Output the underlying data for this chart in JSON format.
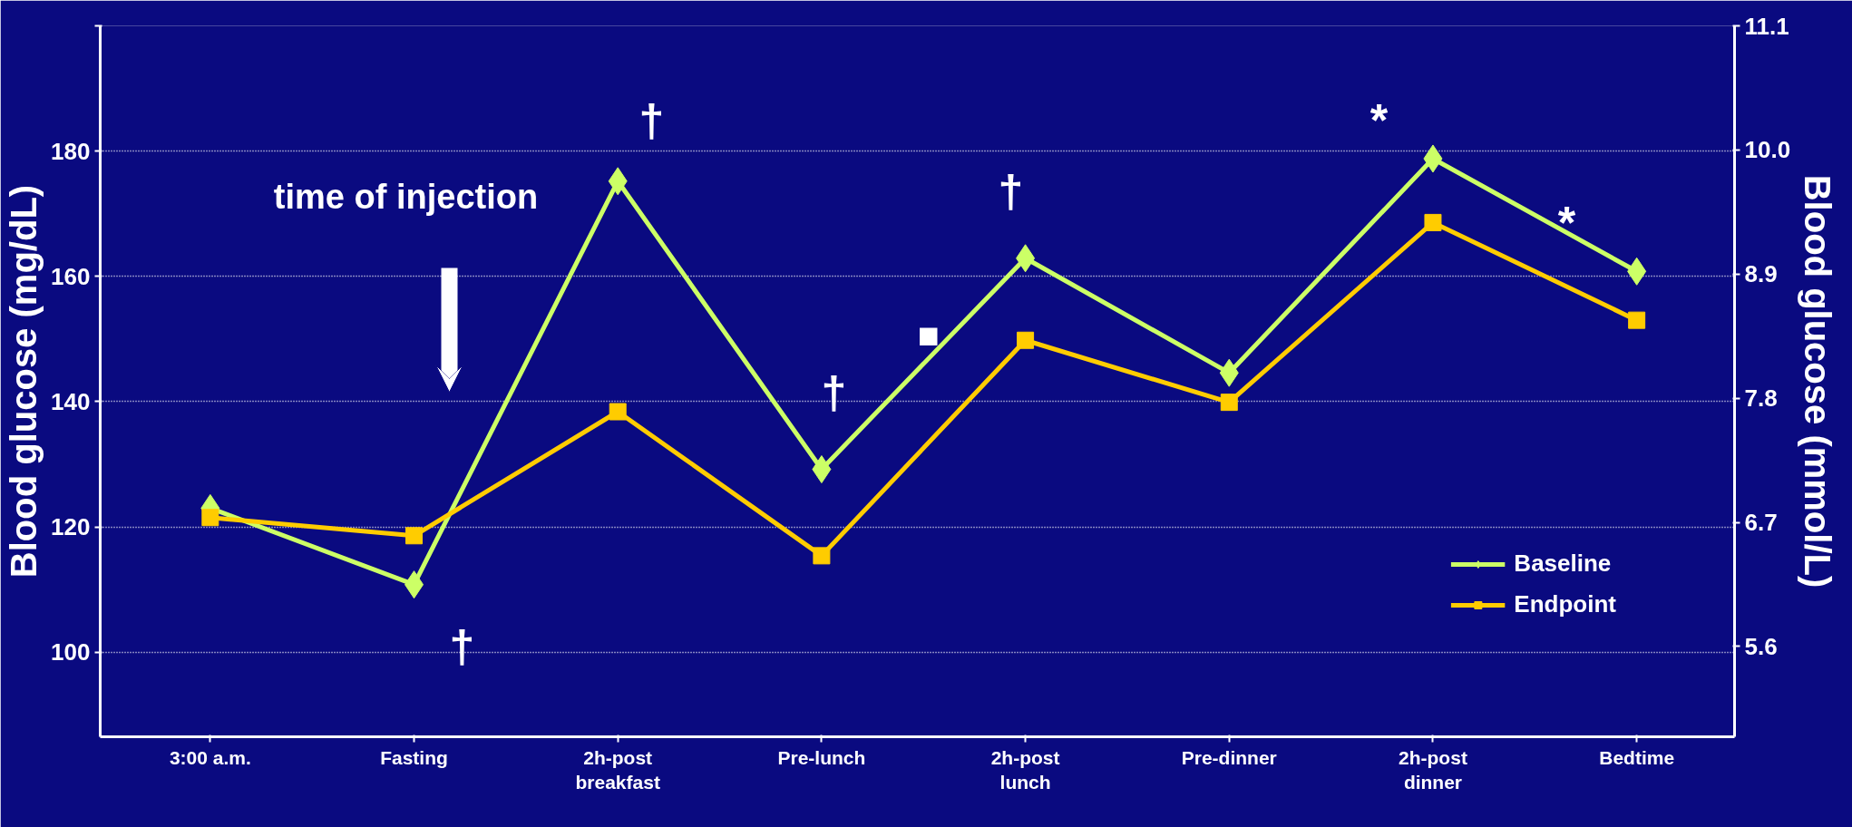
{
  "chart_data": {
    "type": "line",
    "categories": [
      "3:00 a.m.",
      "Fasting",
      "2h-post\nbreakfast",
      "Pre-lunch",
      "2h-post\nlunch",
      "Pre-dinner",
      "2h-post\ndinner",
      "Bedtime"
    ],
    "series": [
      {
        "name": "Baseline",
        "color": "#ccff66",
        "marker": "diamond",
        "values": [
          123,
          110.8,
          175.2,
          129.2,
          162.9,
          144.6,
          178.8,
          160.8
        ]
      },
      {
        "name": "Endpoint",
        "color": "#ffcc00",
        "marker": "square",
        "values": [
          121.5,
          118.6,
          138.4,
          115.4,
          149.8,
          139.9,
          168.6,
          153
        ]
      }
    ],
    "ylabel": "Blood glucose (mg/dL)",
    "y2label": "Blood glucose (mmol/L)",
    "ylim": [
      86.5,
      200
    ],
    "yticks": [
      100,
      120,
      140,
      160,
      180,
      {
        "value": 200,
        "label": null
      }
    ],
    "y2lim": [
      4.8,
      11.1
    ],
    "y2ticks": [
      5.6,
      6.7,
      7.8,
      8.9,
      {
        "value": 10.0,
        "label": "10.0"
      },
      11.1
    ],
    "annotations": [
      "time of injection",
      "†",
      "†",
      "†",
      "†",
      "*",
      "*",
      "■"
    ],
    "grid": "y",
    "legend": "bottom right",
    "line_style": "solid"
  }
}
